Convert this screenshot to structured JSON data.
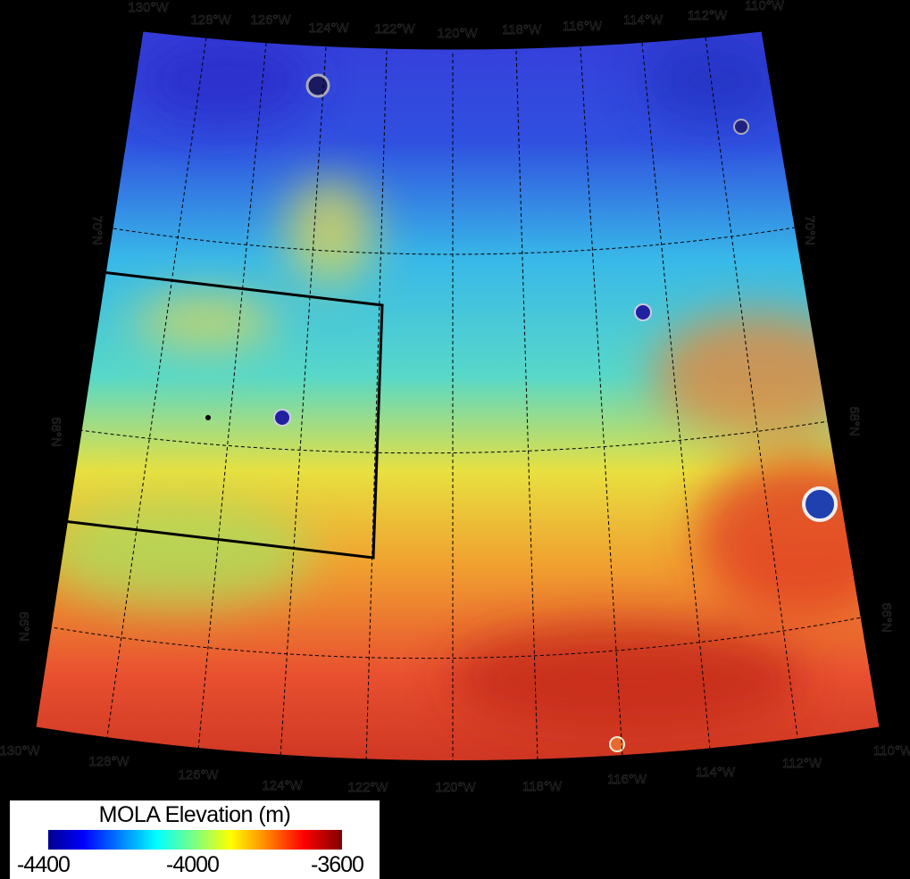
{
  "map": {
    "meridian_labels_top": [
      "130°W",
      "128°W",
      "126°W",
      "124°W",
      "122°W",
      "120°W",
      "118°W",
      "116°W",
      "114°W",
      "112°W",
      "110°W"
    ],
    "meridian_labels_bottom": [
      "130°W",
      "128°W",
      "126°W",
      "124°W",
      "122°W",
      "120°W",
      "118°W",
      "116°W",
      "114°W",
      "112°W",
      "110°W"
    ],
    "parallel_labels_left": [
      "70°N",
      "68°N",
      "66°N"
    ],
    "parallel_labels_right": [
      "70°N",
      "68°N",
      "66°N"
    ],
    "colors": {
      "low": "#00008f",
      "mid": "#00ffff",
      "high": "#800000",
      "box": "#000000"
    }
  },
  "legend": {
    "title": "MOLA Elevation (m)",
    "min_label": "-4400",
    "mid_label": "-4000",
    "max_label": "-3600",
    "colormap": "jet",
    "range": [
      -4400,
      -3600
    ]
  }
}
